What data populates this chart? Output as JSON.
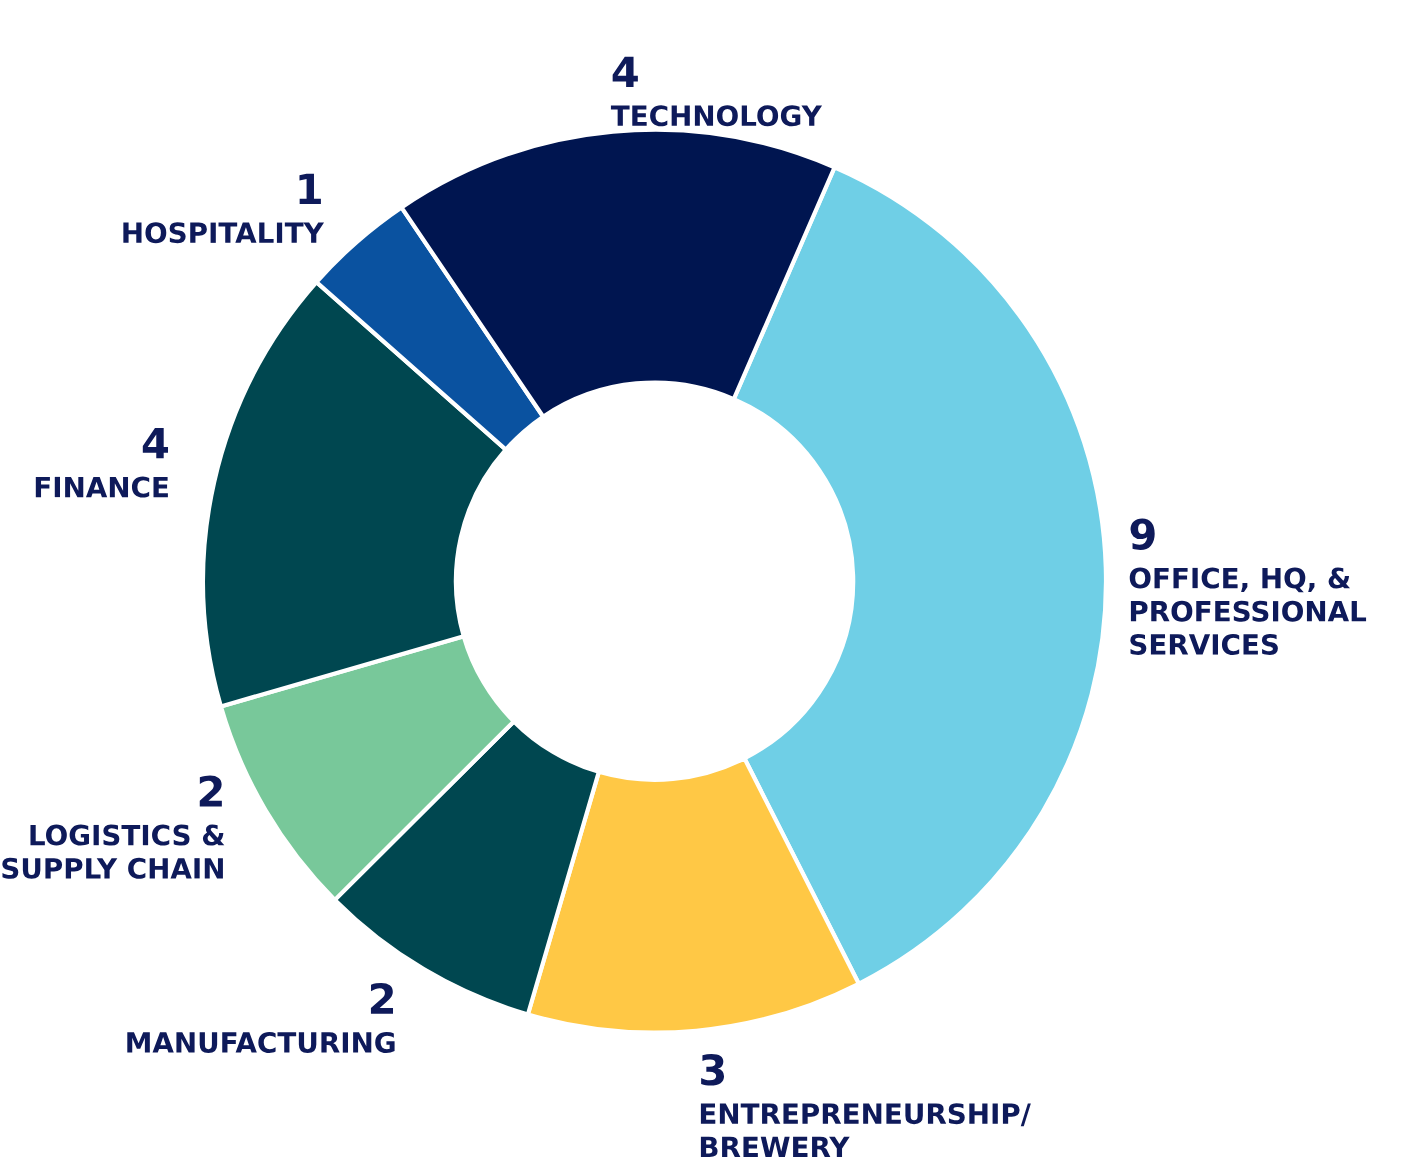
{
  "chart_data": {
    "type": "donut",
    "categories": [
      "OFFICE, HQ, &\nPROFESSIONAL\nSERVICES",
      "ENTREPRENEURSHIP/\nBREWERY",
      "MANUFACTURING",
      "LOGISTICS &\nSUPPLY CHAIN",
      "FINANCE",
      "HOSPITALITY",
      "TECHNOLOGY"
    ],
    "values": [
      9,
      3,
      2,
      2,
      4,
      1,
      4
    ],
    "colors": [
      "#6fcfe6",
      "#ffc845",
      "#004750",
      "#78c89a",
      "#004750",
      "#0a52a0",
      "#001550"
    ],
    "data_labels": true
  }
}
